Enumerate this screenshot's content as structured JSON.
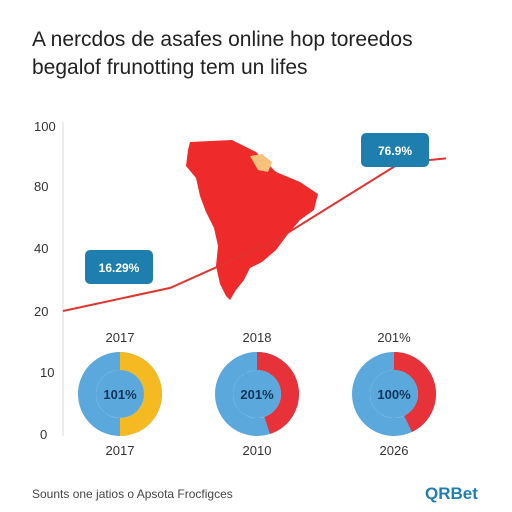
{
  "title_line1": "A nercdos de asafes online hop toreedos",
  "title_line2": "begalof frunotting tem un lifes",
  "source": "Sounts one jatios o Apsota Frocfigces",
  "brand": "QRBet",
  "colors": {
    "line": "#e0342f",
    "map": "#ee2a2a",
    "map_highlight": "#f4c27a",
    "callout": "#1e7fae",
    "donut_base": "#5aa8dc",
    "donut_yellow": "#f5b921",
    "donut_red": "#e8323a",
    "axis_text": "#333333",
    "grid": "#d9d9d9"
  },
  "chart_data": {
    "type": "line",
    "y_ticks_top": [
      "100",
      "80",
      "40",
      "20"
    ],
    "y_ticks_bottom": [
      "10",
      "0"
    ],
    "year_labels_top": [
      "2017",
      "2018",
      "201%"
    ],
    "year_labels_bottom": [
      "2017",
      "2010",
      "2026"
    ],
    "line": {
      "points": [
        {
          "x": 0.0,
          "y": 20
        },
        {
          "x": 0.28,
          "y": 30
        },
        {
          "x": 0.55,
          "y": 50
        },
        {
          "x": 0.88,
          "y": 84
        },
        {
          "x": 1.0,
          "y": 86
        }
      ],
      "ylim": [
        20,
        100
      ]
    },
    "callouts": [
      {
        "label": "16.29%",
        "anchor": 0.1
      },
      {
        "label": "76.9%",
        "anchor": 0.9
      }
    ],
    "donuts": [
      {
        "label": "101%",
        "accent": "yellow",
        "fraction": 0.5
      },
      {
        "label": "201%",
        "accent": "red",
        "fraction": 0.45
      },
      {
        "label": "100%",
        "accent": "red",
        "fraction": 0.43
      }
    ]
  }
}
